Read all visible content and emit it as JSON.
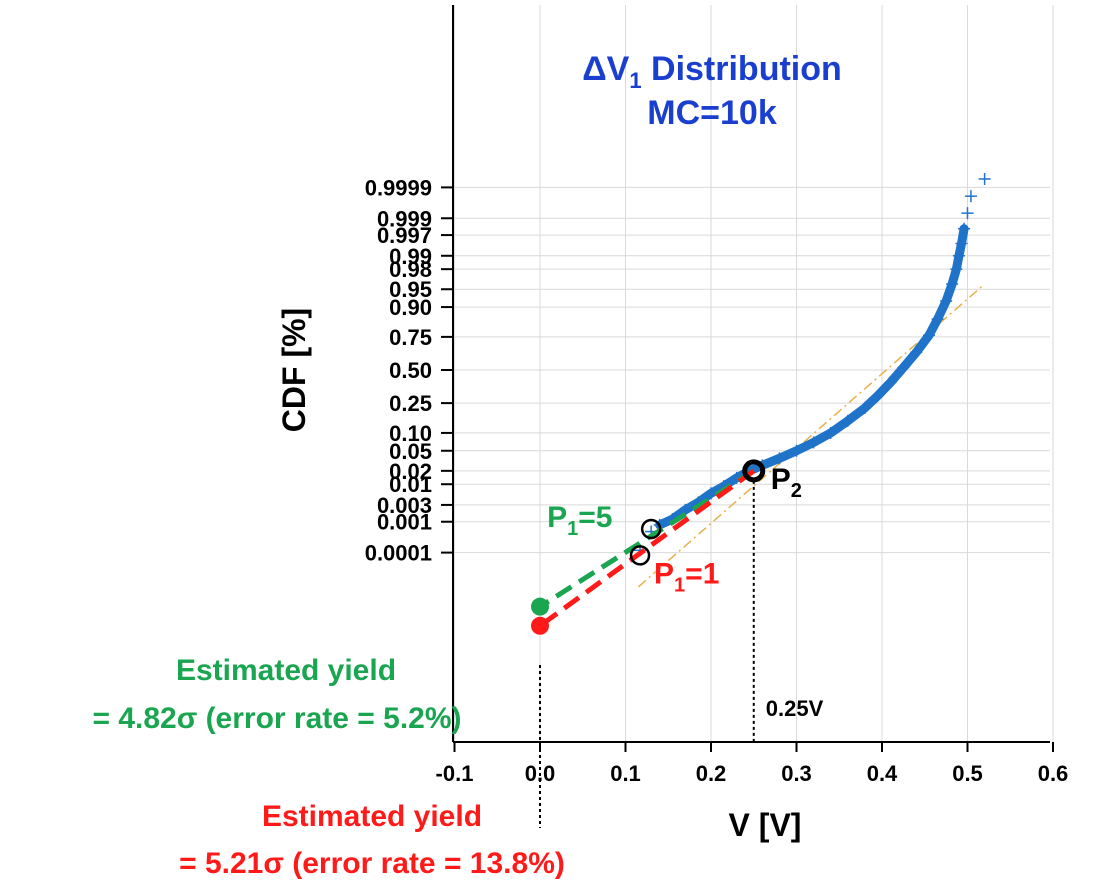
{
  "chart_data": {
    "type": "scatter",
    "title_line1": "ΔV",
    "title_sub": "1",
    "title_line1_rest": " Distribution",
    "title_line2": "MC=10k",
    "xlabel": "V [V]",
    "ylabel": "CDF [%]",
    "xlim": [
      -0.1,
      0.6
    ],
    "x_ticks": [
      "-0.1",
      "0.0",
      "0.1",
      "0.2",
      "0.3",
      "0.4",
      "0.5",
      "0.6"
    ],
    "y_scale": "normal-probability",
    "y_ticks": [
      {
        "label": "0.9999",
        "p": 0.9999
      },
      {
        "label": "0.999",
        "p": 0.999
      },
      {
        "label": "0.997",
        "p": 0.997
      },
      {
        "label": "0.99",
        "p": 0.99
      },
      {
        "label": "0.98",
        "p": 0.98
      },
      {
        "label": "0.95",
        "p": 0.95
      },
      {
        "label": "0.90",
        "p": 0.9
      },
      {
        "label": "0.75",
        "p": 0.75
      },
      {
        "label": "0.50",
        "p": 0.5
      },
      {
        "label": "0.25",
        "p": 0.25
      },
      {
        "label": "0.10",
        "p": 0.1
      },
      {
        "label": "0.05",
        "p": 0.05
      },
      {
        "label": "0.02",
        "p": 0.02
      },
      {
        "label": "0.01",
        "p": 0.01
      },
      {
        "label": "0.003",
        "p": 0.003
      },
      {
        "label": "0.001",
        "p": 0.001
      },
      {
        "label": "0.0001",
        "p": 0.0001
      }
    ],
    "series": [
      {
        "marker": "+",
        "color": "#1f73c8",
        "points": [
          [
            0.117,
            0.00012
          ],
          [
            0.13,
            0.0005
          ],
          [
            0.14,
            0.0008
          ],
          [
            0.155,
            0.0012
          ],
          [
            0.17,
            0.0022
          ],
          [
            0.185,
            0.0035
          ],
          [
            0.2,
            0.006
          ],
          [
            0.215,
            0.009
          ],
          [
            0.23,
            0.014
          ],
          [
            0.245,
            0.02
          ],
          [
            0.26,
            0.026
          ],
          [
            0.28,
            0.036
          ],
          [
            0.3,
            0.05
          ],
          [
            0.32,
            0.07
          ],
          [
            0.34,
            0.1
          ],
          [
            0.36,
            0.15
          ],
          [
            0.38,
            0.22
          ],
          [
            0.395,
            0.3
          ],
          [
            0.41,
            0.4
          ],
          [
            0.425,
            0.52
          ],
          [
            0.44,
            0.64
          ],
          [
            0.455,
            0.76
          ],
          [
            0.465,
            0.85
          ],
          [
            0.475,
            0.92
          ],
          [
            0.482,
            0.96
          ],
          [
            0.487,
            0.98
          ],
          [
            0.49,
            0.99
          ],
          [
            0.493,
            0.995
          ],
          [
            0.496,
            0.998
          ],
          [
            0.5,
            0.9993
          ],
          [
            0.504,
            0.9998
          ],
          [
            0.52,
            0.99995
          ]
        ]
      }
    ],
    "reference_line": {
      "style": "dash-dot",
      "color": "#e8b04a",
      "points": [
        [
          0.115,
          5e-06
        ],
        [
          0.52,
          0.96
        ]
      ]
    },
    "annotations": {
      "p2": {
        "label": "P",
        "sub": "2",
        "x": 0.25,
        "p": 0.02
      },
      "p1_green": {
        "label": "P",
        "sub": "1",
        "suffix": "=5",
        "x": 0.13,
        "p": 0.0006,
        "color": "#1aa550"
      },
      "p1_red": {
        "label": "P",
        "sub": "1",
        "suffix": "=1",
        "x": 0.117,
        "p": 8e-05,
        "color": "#ff1a1a"
      },
      "v025_label": "0.25V",
      "green_yield": {
        "line1": "Estimated yield",
        "line2": "= 4.82σ (error rate = 5.2%)",
        "x": 0.0,
        "sigma": -4.82,
        "color": "#1aa550"
      },
      "red_yield": {
        "line1": "Estimated yield",
        "line2": "= 5.21σ (error rate = 13.8%)",
        "x": 0.0,
        "sigma": -5.21,
        "color": "#ff1a1a"
      }
    },
    "grid": true
  }
}
